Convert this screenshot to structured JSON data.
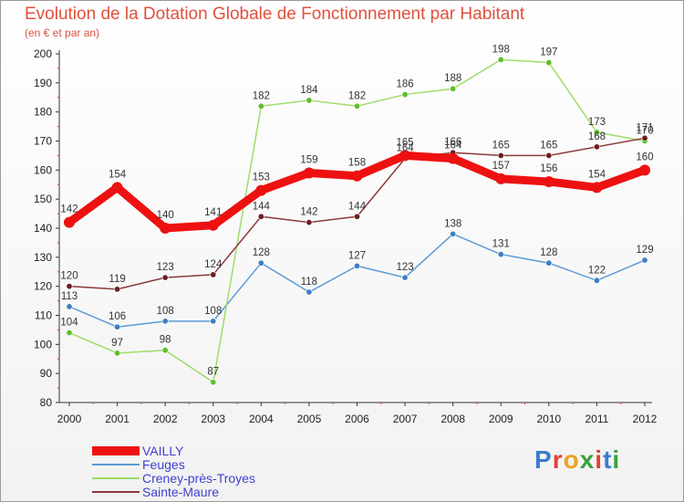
{
  "header": {
    "title": "Evolution de la Dotation Globale de Fonctionnement par Habitant",
    "subtitle": "(en € et par an)"
  },
  "logo": {
    "text": "Proxiti",
    "letter_colors": [
      "#3b7bd0",
      "#e2403a",
      "#f0a020",
      "#3aa03a",
      "#e2403a",
      "#3b7bd0",
      "#3aa03a"
    ]
  },
  "chart_data": {
    "type": "line",
    "categories": [
      "2000",
      "2001",
      "2002",
      "2003",
      "2004",
      "2005",
      "2006",
      "2007",
      "2008",
      "2009",
      "2010",
      "2011",
      "2012"
    ],
    "ylim": [
      80,
      200
    ],
    "yticks": [
      80,
      90,
      100,
      110,
      120,
      130,
      140,
      150,
      160,
      170,
      180,
      190,
      200
    ],
    "grid": false,
    "legend_position": "bottom-left",
    "series": [
      {
        "name": "Feuges",
        "color": "#5b9bd5",
        "dot": "#3f7fc0",
        "values": [
          113,
          106,
          108,
          108,
          128,
          118,
          127,
          123,
          138,
          131,
          128,
          122,
          129
        ]
      },
      {
        "name": "Creney-près-Troyes",
        "color": "#9fdc6a",
        "dot": "#5fbf2a",
        "values": [
          104,
          97,
          98,
          87,
          182,
          184,
          182,
          186,
          188,
          198,
          197,
          173,
          170
        ]
      },
      {
        "name": "Sainte-Maure",
        "color": "#8b3a3a",
        "dot": "#6b1e1e",
        "values": [
          120,
          119,
          123,
          124,
          144,
          142,
          144,
          164,
          166,
          165,
          165,
          168,
          171
        ]
      },
      {
        "name": "VAILLY",
        "color": "#ee1111",
        "dot": "#ee1111",
        "thick": true,
        "values": [
          142,
          154,
          140,
          141,
          153,
          159,
          158,
          165,
          164,
          157,
          156,
          154,
          160
        ]
      }
    ],
    "legend_order": [
      "VAILLY",
      "Feuges",
      "Creney-près-Troyes",
      "Sainte-Maure"
    ],
    "legend_text_color": "#4040d0"
  }
}
